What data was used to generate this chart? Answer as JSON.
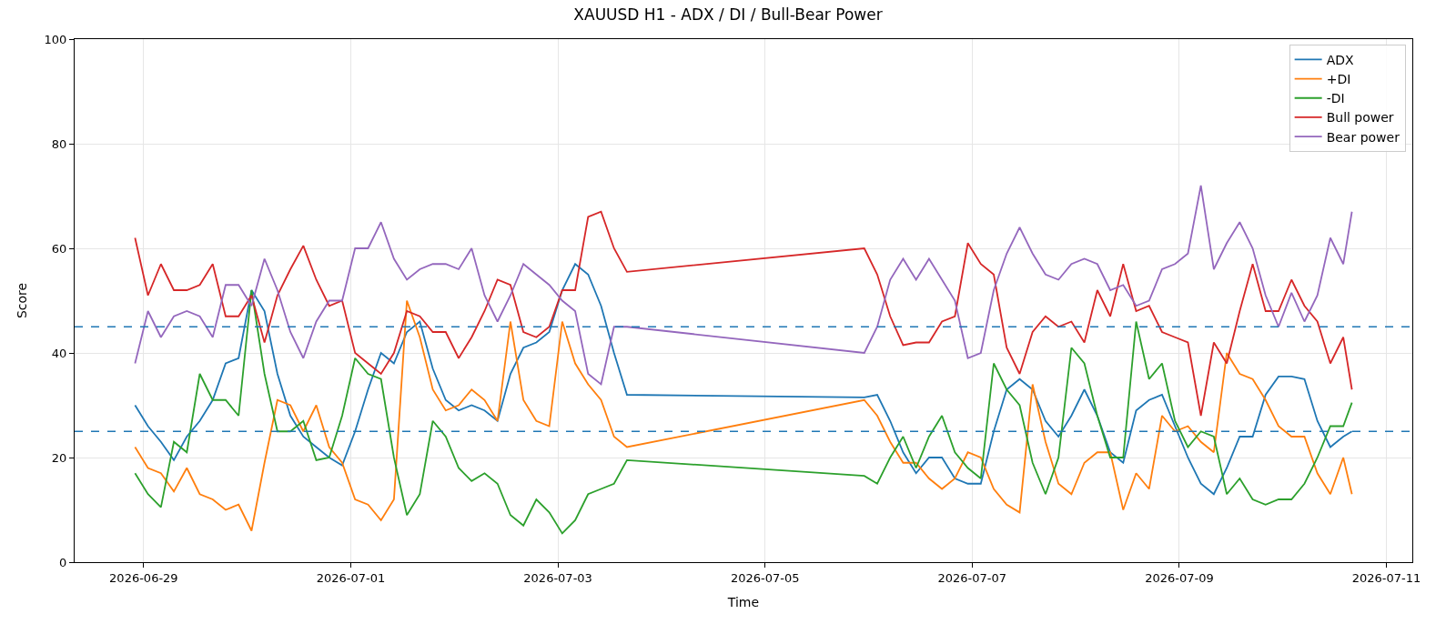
{
  "chart_data": {
    "type": "line",
    "title": "XAUUSD H1 - ADX / DI / Bull-Bear Power",
    "xlabel": "Time",
    "ylabel": "Score",
    "x": [
      "2026-06-28T22:00",
      "2026-06-29T01:00",
      "2026-06-29T04:00",
      "2026-06-29T07:00",
      "2026-06-29T10:00",
      "2026-06-29T13:00",
      "2026-06-29T16:00",
      "2026-06-29T19:00",
      "2026-06-29T22:00",
      "2026-06-30T01:00",
      "2026-06-30T04:00",
      "2026-06-30T07:00",
      "2026-06-30T10:00",
      "2026-06-30T13:00",
      "2026-06-30T16:00",
      "2026-06-30T19:00",
      "2026-06-30T22:00",
      "2026-07-01T01:00",
      "2026-07-01T04:00",
      "2026-07-01T07:00",
      "2026-07-01T10:00",
      "2026-07-01T13:00",
      "2026-07-01T16:00",
      "2026-07-01T19:00",
      "2026-07-01T22:00",
      "2026-07-02T01:00",
      "2026-07-02T04:00",
      "2026-07-02T07:00",
      "2026-07-02T10:00",
      "2026-07-02T13:00",
      "2026-07-02T16:00",
      "2026-07-02T19:00",
      "2026-07-02T22:00",
      "2026-07-03T01:00",
      "2026-07-03T04:00",
      "2026-07-03T07:00",
      "2026-07-03T10:00",
      "2026-07-03T13:00",
      "2026-07-03T16:00",
      "2026-07-05T23:00",
      "2026-07-06T02:00",
      "2026-07-06T05:00",
      "2026-07-06T08:00",
      "2026-07-06T11:00",
      "2026-07-06T14:00",
      "2026-07-06T17:00",
      "2026-07-06T20:00",
      "2026-07-06T23:00",
      "2026-07-07T02:00",
      "2026-07-07T05:00",
      "2026-07-07T08:00",
      "2026-07-07T11:00",
      "2026-07-07T14:00",
      "2026-07-07T17:00",
      "2026-07-07T20:00",
      "2026-07-07T23:00",
      "2026-07-08T02:00",
      "2026-07-08T05:00",
      "2026-07-08T08:00",
      "2026-07-08T11:00",
      "2026-07-08T14:00",
      "2026-07-08T17:00",
      "2026-07-08T20:00",
      "2026-07-08T23:00",
      "2026-07-09T02:00",
      "2026-07-09T05:00",
      "2026-07-09T08:00",
      "2026-07-09T11:00",
      "2026-07-09T14:00",
      "2026-07-09T17:00",
      "2026-07-09T20:00",
      "2026-07-09T23:00",
      "2026-07-10T02:00",
      "2026-07-10T05:00",
      "2026-07-10T08:00",
      "2026-07-10T11:00",
      "2026-07-10T14:00",
      "2026-07-10T16:00"
    ],
    "series": [
      {
        "name": "ADX",
        "color": "#1f77b4",
        "values": [
          30,
          26,
          23,
          19.5,
          24,
          27,
          31,
          38,
          39,
          52,
          48,
          36,
          28,
          24,
          22,
          20,
          18.5,
          25,
          33,
          40,
          38,
          44,
          46,
          37,
          31,
          29,
          30,
          29,
          27,
          36,
          41,
          42,
          44,
          52,
          57,
          55,
          49,
          40,
          32,
          31.5,
          32,
          27,
          21,
          17,
          20,
          20,
          16,
          15,
          15,
          25,
          33,
          35,
          33,
          27,
          24,
          28,
          33,
          28,
          21,
          19,
          29,
          31,
          32,
          26,
          20,
          15,
          13,
          18,
          24,
          24,
          32,
          35.5,
          35.5,
          35,
          27,
          22,
          24,
          25
        ]
      },
      {
        "name": "+DI",
        "color": "#ff7f0e",
        "values": [
          22,
          18,
          17,
          13.5,
          18,
          13,
          12,
          10,
          11,
          6,
          19,
          31,
          30,
          25,
          30,
          22,
          19,
          12,
          11,
          8,
          12,
          50,
          43,
          33,
          29,
          30,
          33,
          31,
          27,
          46,
          31,
          27,
          26,
          46,
          38,
          34,
          31,
          24,
          22,
          31,
          28,
          23,
          19,
          19,
          16,
          14,
          16,
          21,
          20,
          14,
          11,
          9.5,
          34,
          23,
          15,
          13,
          19,
          21,
          21,
          10,
          17,
          14,
          28,
          25,
          26,
          23,
          21,
          40,
          36,
          35,
          31,
          26,
          24,
          24,
          17,
          13,
          20,
          13
        ]
      },
      {
        "name": "-DI",
        "color": "#2ca02c",
        "values": [
          17,
          13,
          10.5,
          23,
          21,
          36,
          31,
          31,
          28,
          52,
          36,
          25,
          25,
          27,
          19.5,
          20,
          28,
          39,
          36,
          35,
          20,
          9,
          13,
          27,
          24,
          18,
          15.5,
          17,
          15,
          9,
          7,
          12,
          9.5,
          5.5,
          8,
          13,
          14,
          15,
          19.5,
          16.5,
          15,
          20,
          24,
          18,
          24,
          28,
          21,
          18,
          16,
          38,
          33,
          30,
          19,
          13,
          20,
          41,
          38,
          28,
          20,
          20,
          46,
          35,
          38,
          27,
          22,
          25,
          24,
          13,
          16,
          12,
          11,
          12,
          12,
          15,
          20,
          26,
          26,
          30.5
        ]
      },
      {
        "name": "Bull power",
        "color": "#d62728",
        "values": [
          62,
          51,
          57,
          52,
          52,
          53,
          57,
          47,
          47,
          51,
          42,
          51,
          56,
          60.5,
          54,
          49,
          50,
          40,
          38,
          36,
          40,
          48,
          47,
          44,
          44,
          39,
          43,
          48,
          54,
          53,
          44,
          43,
          45,
          52,
          52,
          66,
          67,
          60,
          55.5,
          60,
          55,
          47,
          41.5,
          42,
          42,
          46,
          47,
          61,
          57,
          55,
          41,
          36,
          44,
          47,
          45,
          46,
          42,
          52,
          47,
          57,
          48,
          49,
          44,
          43,
          42,
          28,
          42,
          38,
          48,
          57,
          48,
          48,
          54,
          49,
          46,
          38,
          43,
          33
        ]
      },
      {
        "name": "Bear power",
        "color": "#9467bd",
        "values": [
          38,
          48,
          43,
          47,
          48,
          47,
          43,
          53,
          53,
          49,
          58,
          52,
          44,
          39,
          46,
          50,
          50,
          60,
          60,
          65,
          58,
          54,
          56,
          57,
          57,
          56,
          60,
          51,
          46,
          51,
          57,
          55,
          53,
          50,
          48,
          36,
          34,
          45,
          45,
          40,
          45,
          54,
          58,
          54,
          58,
          54,
          50,
          39,
          40,
          52,
          59,
          64,
          59,
          55,
          54,
          57,
          58,
          57,
          52,
          53,
          49,
          50,
          56,
          57,
          59,
          72,
          56,
          61,
          65,
          60,
          51,
          45,
          51.5,
          46,
          51,
          62,
          57,
          67
        ]
      }
    ],
    "xlim": [
      "2026-06-28T08:00",
      "2026-07-11T06:00"
    ],
    "xticks": [
      "2026-06-29",
      "2026-07-01",
      "2026-07-03",
      "2026-07-05",
      "2026-07-07",
      "2026-07-09",
      "2026-07-11"
    ],
    "ylim": [
      0,
      100
    ],
    "yticks": [
      0,
      20,
      40,
      60,
      80,
      100
    ],
    "ref_lines": [
      {
        "axis": "y",
        "value": 45,
        "label": null,
        "color": "#1f77b4",
        "line_style": "dashed"
      },
      {
        "axis": "y",
        "value": 25,
        "label": null,
        "color": "#1f77b4",
        "line_style": "dashed"
      }
    ],
    "grid": true,
    "legend": "top right",
    "line_style": "solid",
    "marker": "none"
  }
}
